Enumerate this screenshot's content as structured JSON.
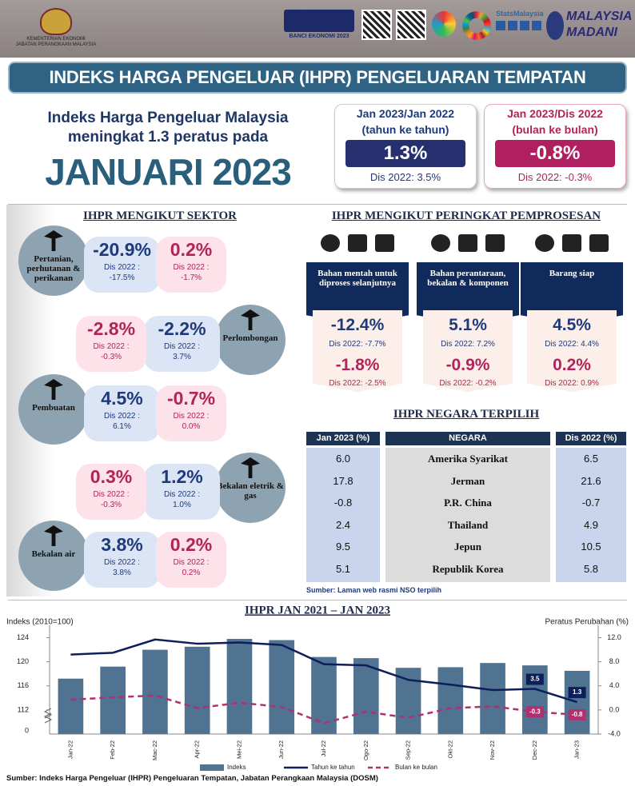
{
  "header": {
    "ministry": "KEMENTERIAN EKONOMI",
    "department": "JABATAN PERANGKAAN MALAYSIA",
    "census": "BANCI EKONOMI 2023",
    "stats": "StatsMalaysia",
    "madani_1": "MALAYSIA",
    "madani_2": "MADANI"
  },
  "banner": "INDEKS HARGA PENGELUAR (IHPR) PENGELUARAN TEMPATAN",
  "headline": {
    "line1": "Indeks Harga Pengeluar Malaysia",
    "line2": "meningkat 1.3 peratus pada",
    "month": "JANUARI 2023"
  },
  "yoy_card": {
    "period": "Jan 2023/Jan 2022",
    "sub": "(tahun ke tahun)",
    "value": "1.3%",
    "prev": "Dis 2022: 3.5%"
  },
  "mom_card": {
    "period": "Jan 2023/Dis 2022",
    "sub": "(bulan ke bulan)",
    "value": "-0.8%",
    "prev": "Dis 2022: -0.3%"
  },
  "sectors": {
    "title": "IHPR MENGIKUT SEKTOR",
    "prev_label": "Dis 2022 :",
    "items": [
      {
        "name": "Pertanian, perhutanan & perikanan",
        "yoy": "-20.9%",
        "yoy_prev": "-17.5%",
        "mom": "0.2%",
        "mom_prev": "-1.7%"
      },
      {
        "name": "Perlombongan",
        "yoy": "-2.2%",
        "yoy_prev": "3.7%",
        "mom": "-2.8%",
        "mom_prev": "-0.3%"
      },
      {
        "name": "Pembuatan",
        "yoy": "4.5%",
        "yoy_prev": "6.1%",
        "mom": "-0.7%",
        "mom_prev": "0.0%"
      },
      {
        "name": "Bekalan eletrik & gas",
        "yoy": "1.2%",
        "yoy_prev": "1.0%",
        "mom": "0.3%",
        "mom_prev": "-0.3%"
      },
      {
        "name": "Bekalan air",
        "yoy": "3.8%",
        "yoy_prev": "3.8%",
        "mom": "0.2%",
        "mom_prev": "0.2%"
      }
    ]
  },
  "stages": {
    "title": "IHPR MENGIKUT PERINGKAT PEMPROSESAN",
    "items": [
      {
        "name": "Bahan mentah untuk diproses selanjutnya",
        "yoy": "-12.4%",
        "yoy_prev": "Dis 2022: -7.7%",
        "mom": "-1.8%",
        "mom_prev": "Dis 2022: -2.5%"
      },
      {
        "name": "Bahan perantaraan, bekalan & komponen",
        "yoy": "5.1%",
        "yoy_prev": "Dis 2022: 7.2%",
        "mom": "-0.9%",
        "mom_prev": "Dis 2022: -0.2%"
      },
      {
        "name": "Barang siap",
        "yoy": "4.5%",
        "yoy_prev": "Dis 2022: 4.4%",
        "mom": "0.2%",
        "mom_prev": "Dis 2022: 0.9%"
      }
    ]
  },
  "countries": {
    "title": "IHPR NEGARA TERPILIH",
    "headers": [
      "Jan 2023 (%)",
      "NEGARA",
      "Dis 2022 (%)"
    ],
    "rows": [
      [
        "6.0",
        "Amerika Syarikat",
        "6.5"
      ],
      [
        "17.8",
        "Jerman",
        "21.6"
      ],
      [
        "-0.8",
        "P.R. China",
        "-0.7"
      ],
      [
        "2.4",
        "Thailand",
        "4.9"
      ],
      [
        "9.5",
        "Jepun",
        "10.5"
      ],
      [
        "5.1",
        "Republik Korea",
        "5.8"
      ]
    ],
    "source": "Sumber: Laman web rasmi NSO terpilih"
  },
  "chart_data": {
    "type": "bar_line",
    "title": "IHPR JAN 2021 – JAN 2023",
    "y_label": "Indeks (2010=100)",
    "y2_label": "Peratus Perubahan (%)",
    "y_break_label": "0",
    "categories": [
      "Jan-22",
      "Feb-22",
      "Mac-22",
      "Apr-22",
      "Mei-22",
      "Jun-22",
      "Jul-22",
      "Ogo-22",
      "Sep-22",
      "Okt-22",
      "Nov-22",
      "Dec-22",
      "Jan-23"
    ],
    "ylim": [
      108,
      125
    ],
    "yticks": [
      112,
      116,
      120,
      124
    ],
    "y2lim": [
      -4,
      13
    ],
    "y2ticks": [
      {
        "value": 12,
        "label": "12.0"
      },
      {
        "value": 8,
        "label": "8.0"
      },
      {
        "value": 4,
        "label": "4.0"
      },
      {
        "value": 0,
        "label": "0.0"
      },
      {
        "value": -4,
        "label": "-4.0"
      }
    ],
    "series": [
      {
        "name": "Indeks",
        "type": "bar",
        "color": "#4f7391",
        "values": [
          117.2,
          119.2,
          122.0,
          122.5,
          123.8,
          123.6,
          120.8,
          120.6,
          119.0,
          119.1,
          119.8,
          119.4,
          118.5
        ]
      },
      {
        "name": "Tahun ke tahun",
        "type": "line",
        "axis": "y2",
        "color": "#0d1f5a",
        "values": [
          9.2,
          9.5,
          11.7,
          11.0,
          11.2,
          10.8,
          7.6,
          7.4,
          5.0,
          4.2,
          3.3,
          3.5,
          1.3
        ],
        "value_labels": [
          null,
          null,
          null,
          null,
          null,
          null,
          null,
          null,
          null,
          null,
          null,
          "3.5",
          "1.3"
        ]
      },
      {
        "name": "Bulan ke bulan",
        "type": "line",
        "dashed": true,
        "axis": "y2",
        "color": "#b03070",
        "values": [
          1.7,
          2.1,
          2.4,
          0.3,
          1.2,
          0.5,
          -2.2,
          -0.3,
          -1.3,
          0.3,
          0.6,
          -0.3,
          -0.8
        ],
        "value_labels": [
          null,
          null,
          null,
          null,
          null,
          null,
          null,
          null,
          null,
          null,
          null,
          "-0.3",
          "-0.8"
        ]
      }
    ]
  },
  "footer": "Sumber: Indeks Harga Pengeluar (IHPR) Pengeluaran Tempatan, Jabatan Perangkaan Malaysia (DOSM)"
}
